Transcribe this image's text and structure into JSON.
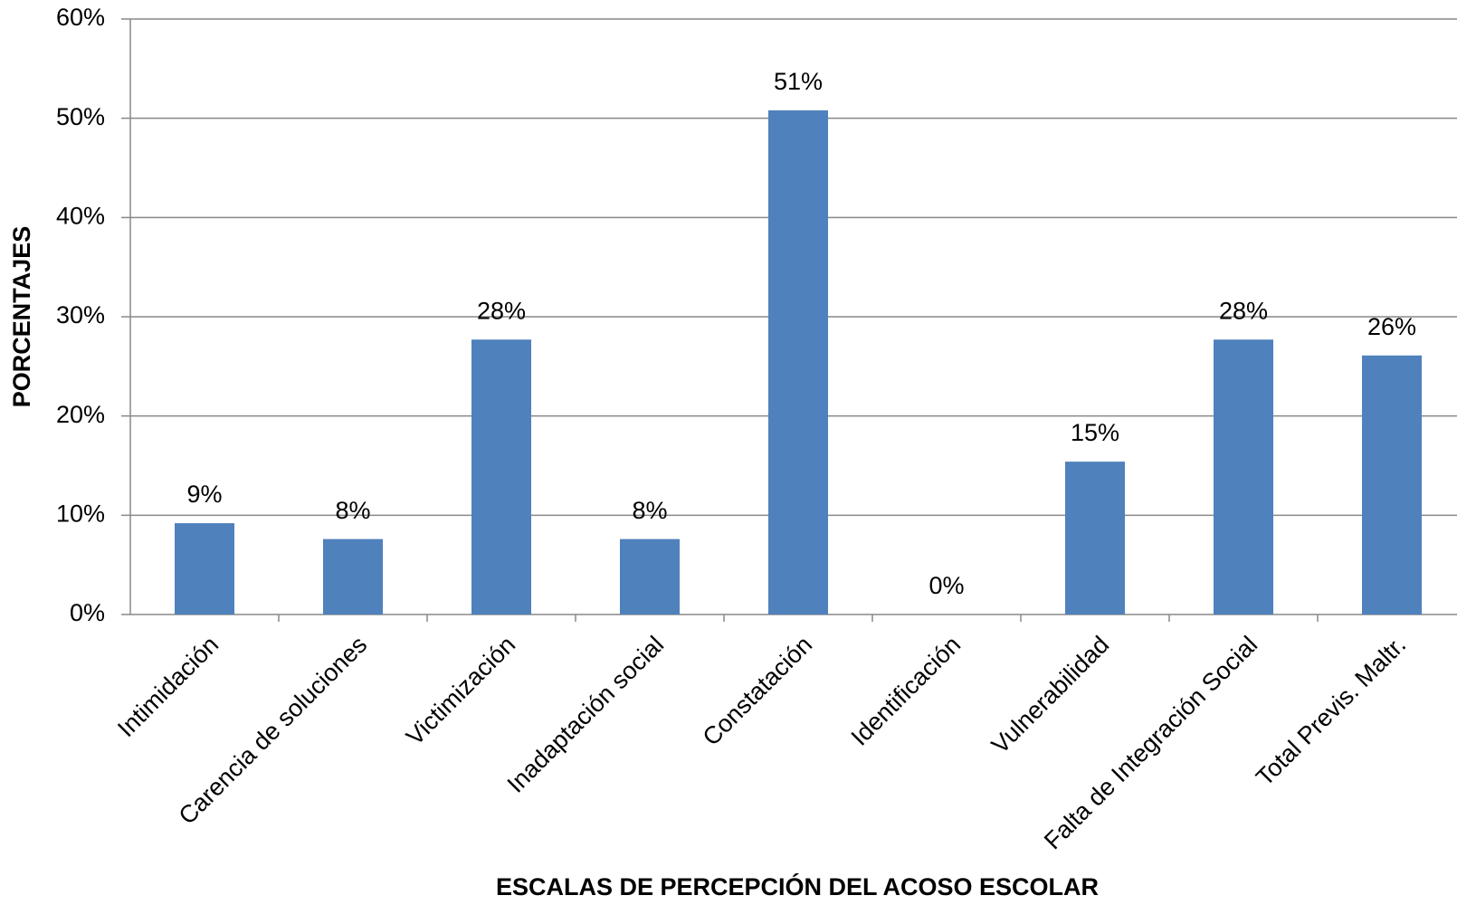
{
  "chart_data": {
    "type": "bar",
    "x_label": "ESCALAS DE PERCEPCIÓN DEL ACOSO ESCOLAR",
    "y_label": "PORCENTAJES",
    "categories": [
      "Intimidación",
      "Carencia de soluciones",
      "Victimización",
      "Inadaptación social",
      "Constatación",
      "Identificación",
      "Vulnerabilidad",
      "Falta de Integración Social",
      "Total Previs. Maltr."
    ],
    "values": [
      9.2,
      7.6,
      27.7,
      7.6,
      50.8,
      0,
      15.4,
      27.7,
      26.1
    ],
    "value_labels": [
      "9%",
      "8%",
      "28%",
      "8%",
      "51%",
      "0%",
      "15%",
      "28%",
      "26%"
    ],
    "color": "#4f81bd",
    "ylim": [
      0,
      60
    ],
    "yticks": [
      {
        "value": 0,
        "label": "0%"
      },
      {
        "value": 10,
        "label": "10%"
      },
      {
        "value": 20,
        "label": "20%"
      },
      {
        "value": 30,
        "label": "30%"
      },
      {
        "value": 40,
        "label": "40%"
      },
      {
        "value": 50,
        "label": "50%"
      },
      {
        "value": 60,
        "label": "60%"
      }
    ],
    "grid": true
  }
}
